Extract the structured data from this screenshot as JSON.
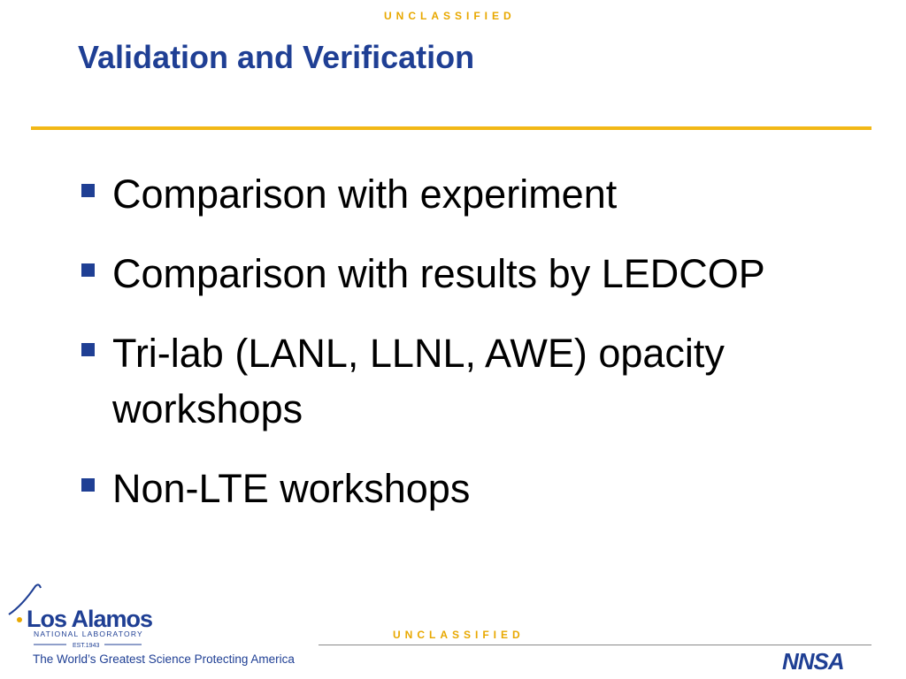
{
  "header": {
    "classification": "UNCLASSIFIED",
    "title": "Validation and Verification"
  },
  "bullets": [
    "Comparison with experiment",
    "Comparison with results by LEDCOP",
    "Tri-lab (LANL, LLNL, AWE) opacity workshops",
    "Non-LTE workshops"
  ],
  "footer": {
    "classification": "UNCLASSIFIED",
    "logo_name": "Los Alamos",
    "logo_sub": "NATIONAL LABORATORY",
    "logo_est": "EST.1943",
    "tagline": "The World’s Greatest Science Protecting America",
    "agency": "NNSA"
  }
}
